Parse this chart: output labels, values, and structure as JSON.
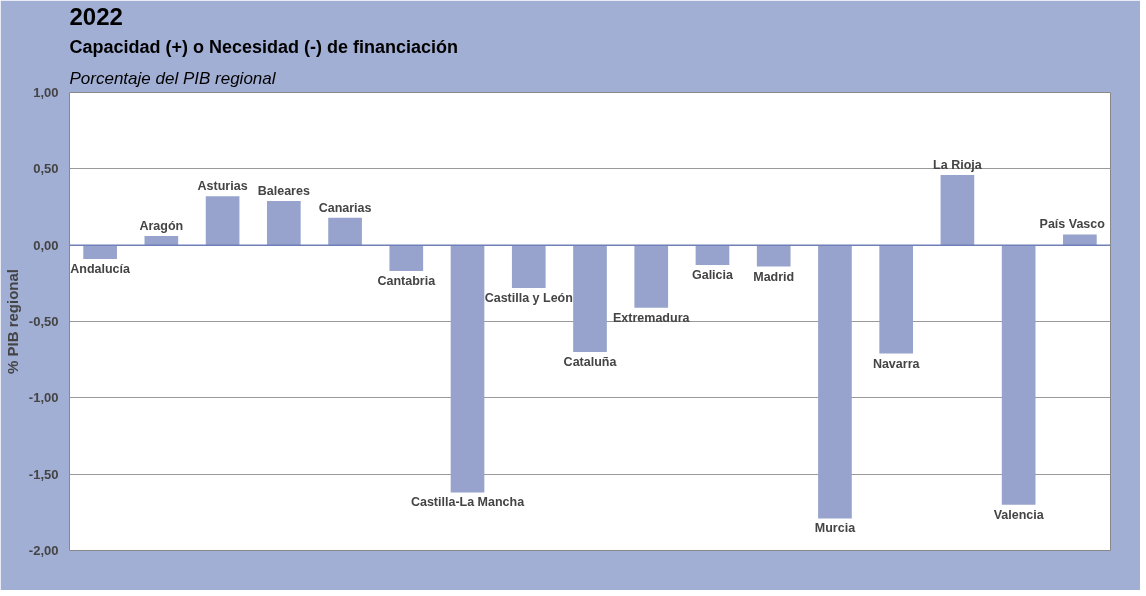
{
  "chart_data": {
    "type": "bar",
    "title": "2022",
    "subtitle": "Capacidad (+) o Necesidad (-) de financiación",
    "annotations": [
      "Porcentaje del PIB regional"
    ],
    "ylabel": "% PIB regional",
    "categories": [
      "Andalucía",
      "Aragón",
      "Asturias",
      "Baleares",
      "Canarias",
      "Cantabria",
      "Castilla-La Mancha",
      "Castilla y León",
      "Cataluña",
      "Extremadura",
      "Galicia",
      "Madrid",
      "Murcia",
      "Navarra",
      "La Rioja",
      "Valencia",
      "País Vasco"
    ],
    "values": [
      -0.09,
      0.06,
      0.32,
      0.29,
      0.18,
      -0.17,
      -1.62,
      -0.28,
      -0.7,
      -0.41,
      -0.13,
      -0.14,
      -1.79,
      -0.71,
      0.46,
      -1.7,
      0.07
    ],
    "color": "#97a3cc",
    "ylim": [
      -2,
      1
    ],
    "yticks": [
      {
        "value": -2,
        "label": "-2,00"
      },
      {
        "value": -1.5,
        "label": "-1,50"
      },
      {
        "value": -1,
        "label": "-1,00"
      },
      {
        "value": -0.5,
        "label": "-0,50"
      },
      {
        "value": 0,
        "label": "0,00"
      },
      {
        "value": 0.5,
        "label": "0,50"
      },
      {
        "value": 1,
        "label": "1,00"
      }
    ],
    "grid": "y"
  }
}
